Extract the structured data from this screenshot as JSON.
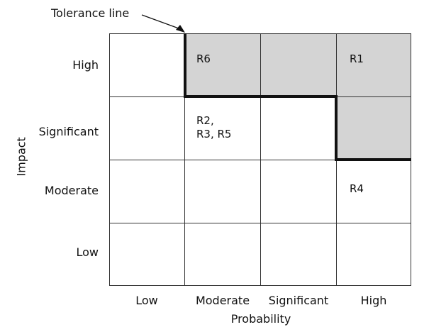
{
  "diagram": {
    "annotation": "Tolerance line",
    "x_axis_title": "Probability",
    "y_axis_title": "Impact",
    "columns": [
      "Low",
      "Moderate",
      "Significant",
      "High"
    ],
    "rows": [
      "High",
      "Significant",
      "Moderate",
      "Low"
    ],
    "shaded_cells": [
      "High-Moderate",
      "High-Significant",
      "High-High",
      "Significant-High"
    ],
    "risks": {
      "r6": "R6",
      "r1": "R1",
      "r2_r3_r5": "R2,\nR3, R5",
      "r4": "R4"
    }
  }
}
